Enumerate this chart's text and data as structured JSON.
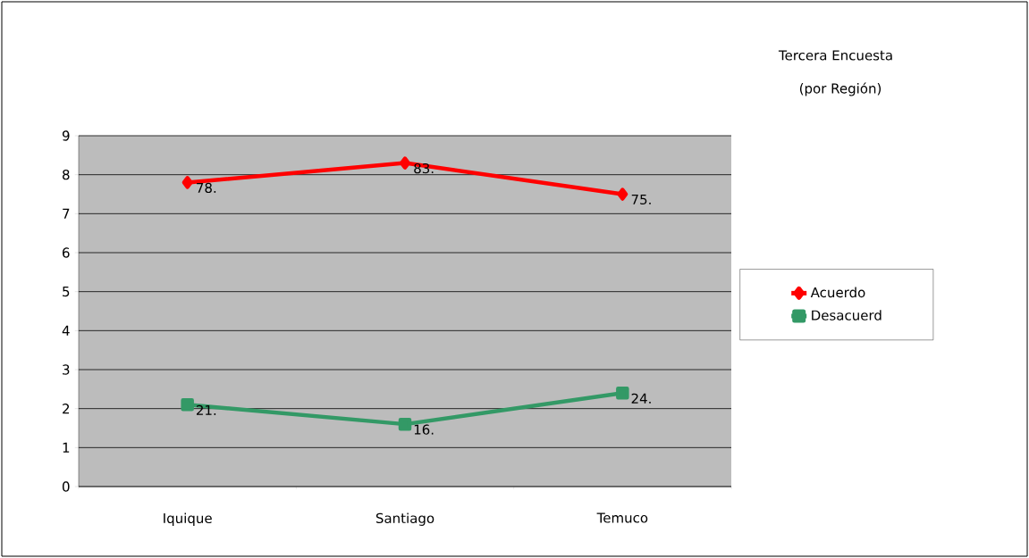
{
  "chart_data": {
    "type": "line",
    "title": "Tercera Encuesta",
    "subtitle": "(por Región)",
    "categories": [
      "Iquique",
      "Santiago",
      "Temuco"
    ],
    "series": [
      {
        "name": "Acuerdo",
        "color": "#ff0000",
        "values": [
          7.8,
          8.3,
          7.5
        ],
        "marker": "diamond"
      },
      {
        "name": "Desacuerd",
        "color": "#339966",
        "values": [
          2.1,
          1.6,
          2.4
        ],
        "marker": "square"
      }
    ],
    "annotations": [
      {
        "text": "78.",
        "x": "Iquique",
        "y": 7.8
      },
      {
        "text": "83.",
        "x": "Santiago",
        "y": 8.3
      },
      {
        "text": "75.",
        "x": "Temuco",
        "y": 7.5
      },
      {
        "text": "21.",
        "x": "Iquique",
        "y": 2.1
      },
      {
        "text": "16.",
        "x": "Santiago",
        "y": 1.6
      },
      {
        "text": "24.",
        "x": "Temuco",
        "y": 2.4
      }
    ],
    "ylim": [
      0,
      9
    ],
    "yticks": [
      0,
      1,
      2,
      3,
      4,
      5,
      6,
      7,
      8,
      9
    ],
    "grid": "y",
    "legend": "right"
  }
}
